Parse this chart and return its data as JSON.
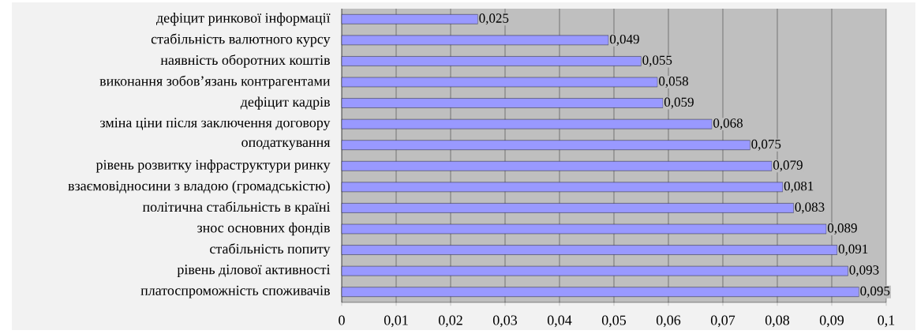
{
  "chart_data": {
    "type": "bar",
    "orientation": "horizontal",
    "categories": [
      "дефіцит ринкової інформації",
      "стабільність валютного курсу",
      "наявність оборотних коштів",
      "виконання зобов’язань контрагентами",
      "дефіцит кадрів",
      "зміна ціни після заключення договору",
      "оподаткування",
      "рівень розвитку інфраструктури ринку",
      "взаємовідносини з владою (громадськістю)",
      "політична стабільність в країні",
      "знос основних фондів",
      "стабільність попиту",
      "рівень ділової активності",
      "платоспроможність споживачів"
    ],
    "values": [
      0.025,
      0.049,
      0.055,
      0.058,
      0.059,
      0.068,
      0.075,
      0.079,
      0.081,
      0.083,
      0.089,
      0.091,
      0.093,
      0.095
    ],
    "value_labels": [
      "0,025",
      "0,049",
      "0,055",
      "0,058",
      "0,059",
      "0,068",
      "0,075",
      "0,079",
      "0,081",
      "0,083",
      "0,089",
      "0,091",
      "0,093",
      "0,095"
    ],
    "color": "#9999ff",
    "xlim": [
      0,
      0.1
    ],
    "xticks": [
      0,
      {
        "value": 0.01,
        "label": "0,01"
      },
      {
        "value": 0.02,
        "label": "0,02"
      },
      {
        "value": 0.03,
        "label": "0,03"
      },
      {
        "value": 0.04,
        "label": "0,04"
      },
      {
        "value": 0.05,
        "label": "0,05"
      },
      {
        "value": 0.06,
        "label": "0,06"
      },
      {
        "value": 0.07,
        "label": "0,07"
      },
      {
        "value": 0.08,
        "label": "0,08"
      },
      {
        "value": 0.09,
        "label": "0,09"
      },
      {
        "value": 0.1,
        "label": "0,1"
      }
    ],
    "grid": "x"
  }
}
